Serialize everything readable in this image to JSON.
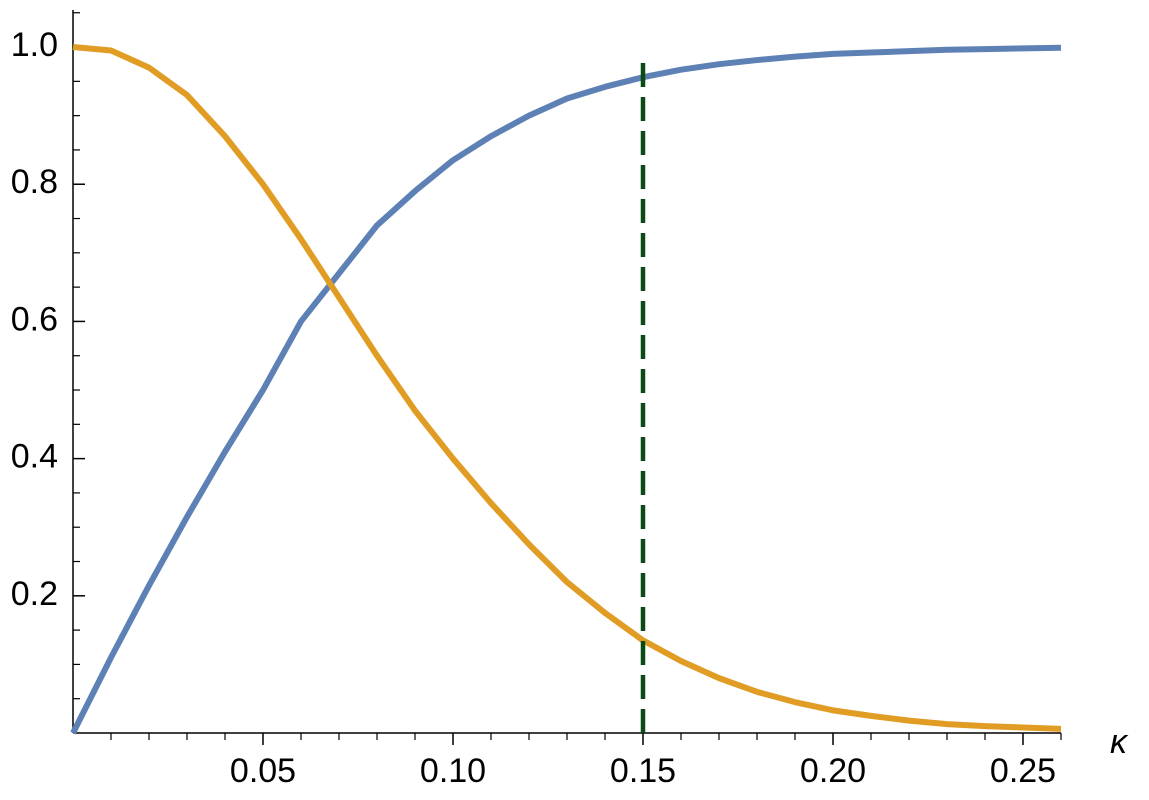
{
  "chart_data": {
    "type": "line",
    "x_label": "κ",
    "x": [
      0,
      0.01,
      0.02,
      0.03,
      0.04,
      0.05,
      0.06,
      0.07,
      0.08,
      0.09,
      0.1,
      0.11,
      0.12,
      0.13,
      0.14,
      0.15,
      0.16,
      0.17,
      0.18,
      0.19,
      0.2,
      0.21,
      0.22,
      0.23,
      0.24,
      0.25,
      0.26
    ],
    "series": [
      {
        "color": "#5e81b5",
        "values": [
          0,
          0.11,
          0.215,
          0.315,
          0.41,
          0.5,
          0.6,
          0.67,
          0.74,
          0.79,
          0.835,
          0.87,
          0.9,
          0.925,
          0.942,
          0.956,
          0.967,
          0.975,
          0.981,
          0.986,
          0.99,
          0.992,
          0.994,
          0.996,
          0.997,
          0.998,
          0.999
        ]
      },
      {
        "color": "#e19c24",
        "values": [
          1,
          0.995,
          0.97,
          0.93,
          0.87,
          0.8,
          0.72,
          0.635,
          0.55,
          0.47,
          0.4,
          0.335,
          0.275,
          0.22,
          0.175,
          0.135,
          0.105,
          0.08,
          0.06,
          0.045,
          0.033,
          0.025,
          0.018,
          0.013,
          0.01,
          0.008,
          0.006
        ]
      }
    ],
    "vline": {
      "x": 0.15,
      "y_top": 0.977,
      "color": "#0b4a14",
      "dashed": true
    },
    "xlim": [
      0,
      0.26
    ],
    "ylim": [
      0,
      1.054
    ],
    "xticks": [
      0.05,
      {
        "value": 0.1,
        "label": "0.10"
      },
      0.15,
      {
        "value": 0.2,
        "label": "0.20"
      },
      0.25
    ],
    "yticks": [
      0.2,
      0.4,
      0.6,
      0.8,
      {
        "value": 1,
        "label": "1.0"
      }
    ],
    "xminorticks": [
      0.01,
      0.02,
      0.03,
      0.04,
      0.06,
      0.07,
      0.08,
      0.09,
      0.11,
      0.12,
      0.13,
      0.14,
      0.16,
      0.17,
      0.18,
      0.19,
      0.21,
      0.22,
      0.23,
      0.24,
      0.26
    ],
    "yminorticks": [
      0.05,
      0.1,
      0.15,
      0.25,
      0.3,
      0.35,
      0.45,
      0.5,
      0.55,
      0.65,
      0.7,
      0.75,
      0.85,
      0.9,
      0.95,
      1.05
    ],
    "grid": false
  }
}
